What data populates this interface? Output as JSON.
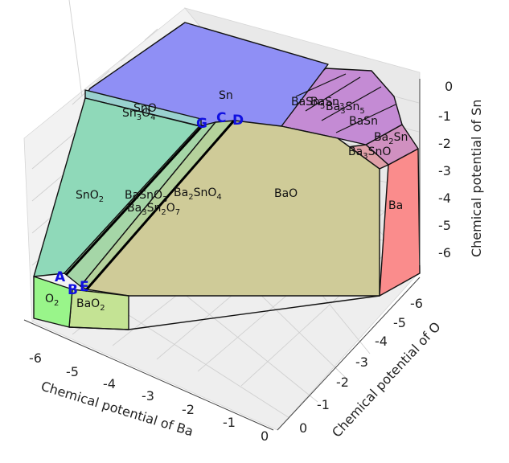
{
  "chart_data": {
    "type": "3d-phase-diagram",
    "axes": {
      "x": {
        "label": "Chemical potential of Ba",
        "ticks": [
          "-6",
          "-5",
          "-4",
          "-3",
          "-2",
          "-1",
          "0"
        ],
        "range": [
          -6.5,
          0
        ]
      },
      "y": {
        "label": "Chemical potential of O",
        "ticks": [
          "0",
          "-1",
          "-2",
          "-3",
          "-4",
          "-5",
          "-6"
        ],
        "range": [
          -6.5,
          0
        ]
      },
      "z": {
        "label": "Chemical potential of Sn",
        "ticks": [
          "0",
          "-1",
          "-2",
          "-3",
          "-4",
          "-5",
          "-6"
        ],
        "range": [
          -6.5,
          0
        ]
      }
    },
    "grid": true,
    "regions": [
      {
        "key": "Sn",
        "label": "Sn",
        "color": "#8f8ff5"
      },
      {
        "key": "SnO",
        "label": "SnO",
        "color": "#9ad1cf"
      },
      {
        "key": "Sn3O4",
        "label": "Sn3O4",
        "color": "#9ad1cf"
      },
      {
        "key": "SnO2",
        "label": "SnO2",
        "color": "#8fd9b9"
      },
      {
        "key": "BaSnO3",
        "label": "BaSnO3",
        "color": "#a5d6a7"
      },
      {
        "key": "Ba2SnO4",
        "label": "Ba2SnO4",
        "color": "#b5d29c"
      },
      {
        "key": "Ba3Sn2O7",
        "label": "Ba3Sn2O7",
        "color": "#bcd29c"
      },
      {
        "key": "BaO",
        "label": "BaO",
        "color": "#cfcb98"
      },
      {
        "key": "BaO2",
        "label": "BaO2",
        "color": "#c4e394"
      },
      {
        "key": "O2",
        "label": "O2",
        "color": "#99f58a"
      },
      {
        "key": "Ba",
        "label": "Ba",
        "color": "#fa8c8c"
      },
      {
        "key": "BaSn5",
        "label": "BaSn5",
        "color": "#c48bd4"
      },
      {
        "key": "BaSn3",
        "label": "BaSn3",
        "color": "#c48bd4"
      },
      {
        "key": "Ba3Sn5",
        "label": "Ba3Sn5",
        "color": "#c48bd4"
      },
      {
        "key": "BaSn",
        "label": "BaSn",
        "color": "#c48bd4"
      },
      {
        "key": "Ba2Sn",
        "label": "Ba2Sn",
        "color": "#d090c0"
      },
      {
        "key": "Ba3SnO",
        "label": "Ba3SnO",
        "color": "#e0a0a8"
      }
    ],
    "points": [
      "A",
      "B",
      "C",
      "D",
      "E",
      "G"
    ]
  }
}
